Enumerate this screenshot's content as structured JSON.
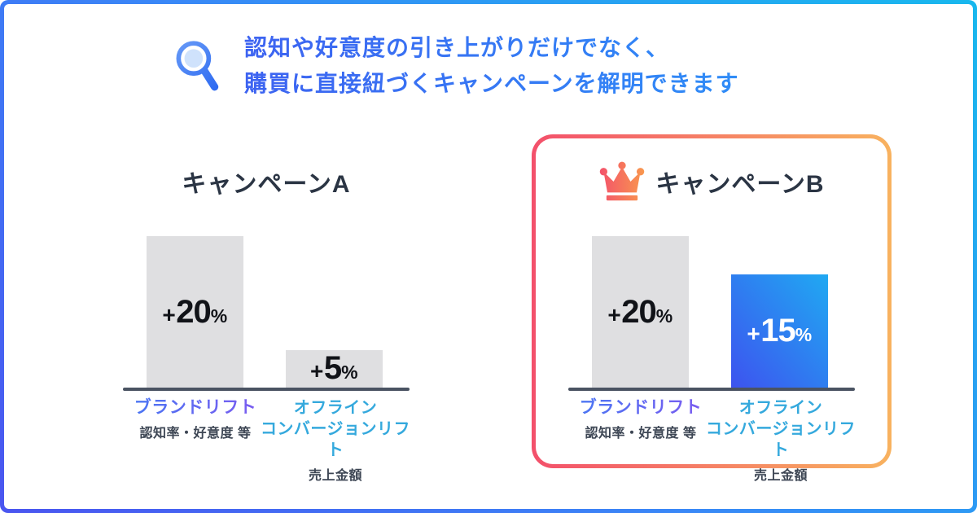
{
  "header": {
    "icon": "magnifier-icon",
    "line1": "認知や好意度の引き上がりだけでなく、",
    "line2": "購買に直接紐づくキャンペーンを解明できます"
  },
  "campaigns": [
    {
      "title": "キャンペーンA",
      "highlighted": false,
      "bars": [
        {
          "label_lines": [
            "ブランドリフト"
          ],
          "sublabel": "認知率・好意度 等",
          "lift_sign": "+",
          "lift_value": 20,
          "lift_unit": "%",
          "style": "gray"
        },
        {
          "label_lines": [
            "オフライン",
            "コンバージョンリフト"
          ],
          "sublabel": "売上金額",
          "lift_sign": "+",
          "lift_value": 5,
          "lift_unit": "%",
          "style": "gray"
        }
      ]
    },
    {
      "title": "キャンペーンB",
      "highlighted": true,
      "badge_icon": "crown-icon",
      "bars": [
        {
          "label_lines": [
            "ブランドリフト"
          ],
          "sublabel": "認知率・好意度 等",
          "lift_sign": "+",
          "lift_value": 20,
          "lift_unit": "%",
          "style": "gray"
        },
        {
          "label_lines": [
            "オフライン",
            "コンバージョンリフト"
          ],
          "sublabel": "売上金額",
          "lift_sign": "+",
          "lift_value": 15,
          "lift_unit": "%",
          "style": "blue"
        }
      ]
    }
  ],
  "chart_data": [
    {
      "type": "bar",
      "title": "キャンペーンA",
      "categories": [
        "ブランドリフト（認知率・好意度 等）",
        "オフラインコンバージョンリフト（売上金額）"
      ],
      "values": [
        20,
        5
      ],
      "data_labels": [
        "+20%",
        "+5%"
      ],
      "ylim": [
        0,
        20
      ],
      "grid": false,
      "bar_colors": [
        "#dfdfe1",
        "#dfdfe1"
      ]
    },
    {
      "type": "bar",
      "title": "キャンペーンB",
      "categories": [
        "ブランドリフト（認知率・好意度 等）",
        "オフラインコンバージョンリフト（売上金額）"
      ],
      "values": [
        20,
        15
      ],
      "data_labels": [
        "+20%",
        "+15%"
      ],
      "ylim": [
        0,
        20
      ],
      "grid": false,
      "bar_colors": [
        "#dfdfe1",
        "linear-gradient(#3d53ef,#20a9f2)"
      ]
    }
  ],
  "colors": {
    "page_border_gradient": [
      "#18b8ee",
      "#4a55f0"
    ],
    "header_text_blue": "#2f7bf5",
    "title_dark": "#2b3544",
    "bar_gray": "#dfdfe1",
    "bar_blue_gradient": [
      "#3d53ef",
      "#20a9f2"
    ],
    "axis_dark": "#4a5362",
    "brand_lift_label_gradient": [
      "#4a75f3",
      "#7a5cf0"
    ],
    "offline_cv_label_cyan": "#35a9dd",
    "sublabel_dark": "#3d4654",
    "highlight_border_gradient": [
      "#f3506b",
      "#f8b25f"
    ],
    "crown_gradient": [
      "#f3506b",
      "#f99a4e"
    ]
  }
}
